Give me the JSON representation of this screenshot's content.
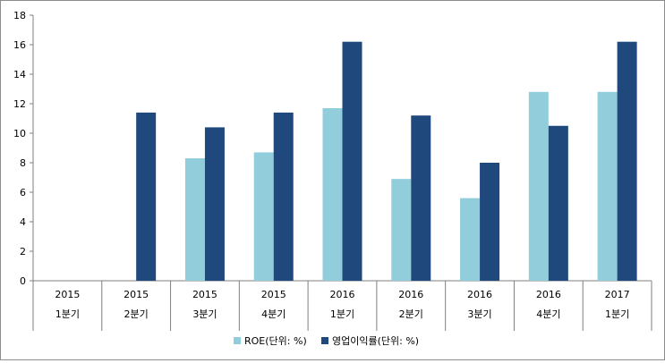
{
  "chart_data": {
    "type": "bar",
    "categories": [
      [
        "2015",
        "1분기"
      ],
      [
        "2015",
        "2분기"
      ],
      [
        "2015",
        "3분기"
      ],
      [
        "2015",
        "4분기"
      ],
      [
        "2016",
        "1분기"
      ],
      [
        "2016",
        "2분기"
      ],
      [
        "2016",
        "3분기"
      ],
      [
        "2016",
        "4분기"
      ],
      [
        "2017",
        "1분기"
      ]
    ],
    "series": [
      {
        "name": "ROE(단위: %)",
        "color": "#92cddc",
        "values": [
          0,
          0,
          8.3,
          8.7,
          11.7,
          6.9,
          5.6,
          12.8,
          12.8
        ]
      },
      {
        "name": "영업이익률(단위: %)",
        "color": "#1f497d",
        "values": [
          0,
          11.4,
          10.4,
          11.4,
          16.2,
          11.2,
          8.0,
          10.5,
          16.2
        ]
      }
    ],
    "ylim": [
      0,
      18
    ],
    "yticks": [
      0,
      2,
      4,
      6,
      8,
      10,
      12,
      14,
      16,
      18
    ],
    "grid": false,
    "legend_position": "bottom"
  }
}
